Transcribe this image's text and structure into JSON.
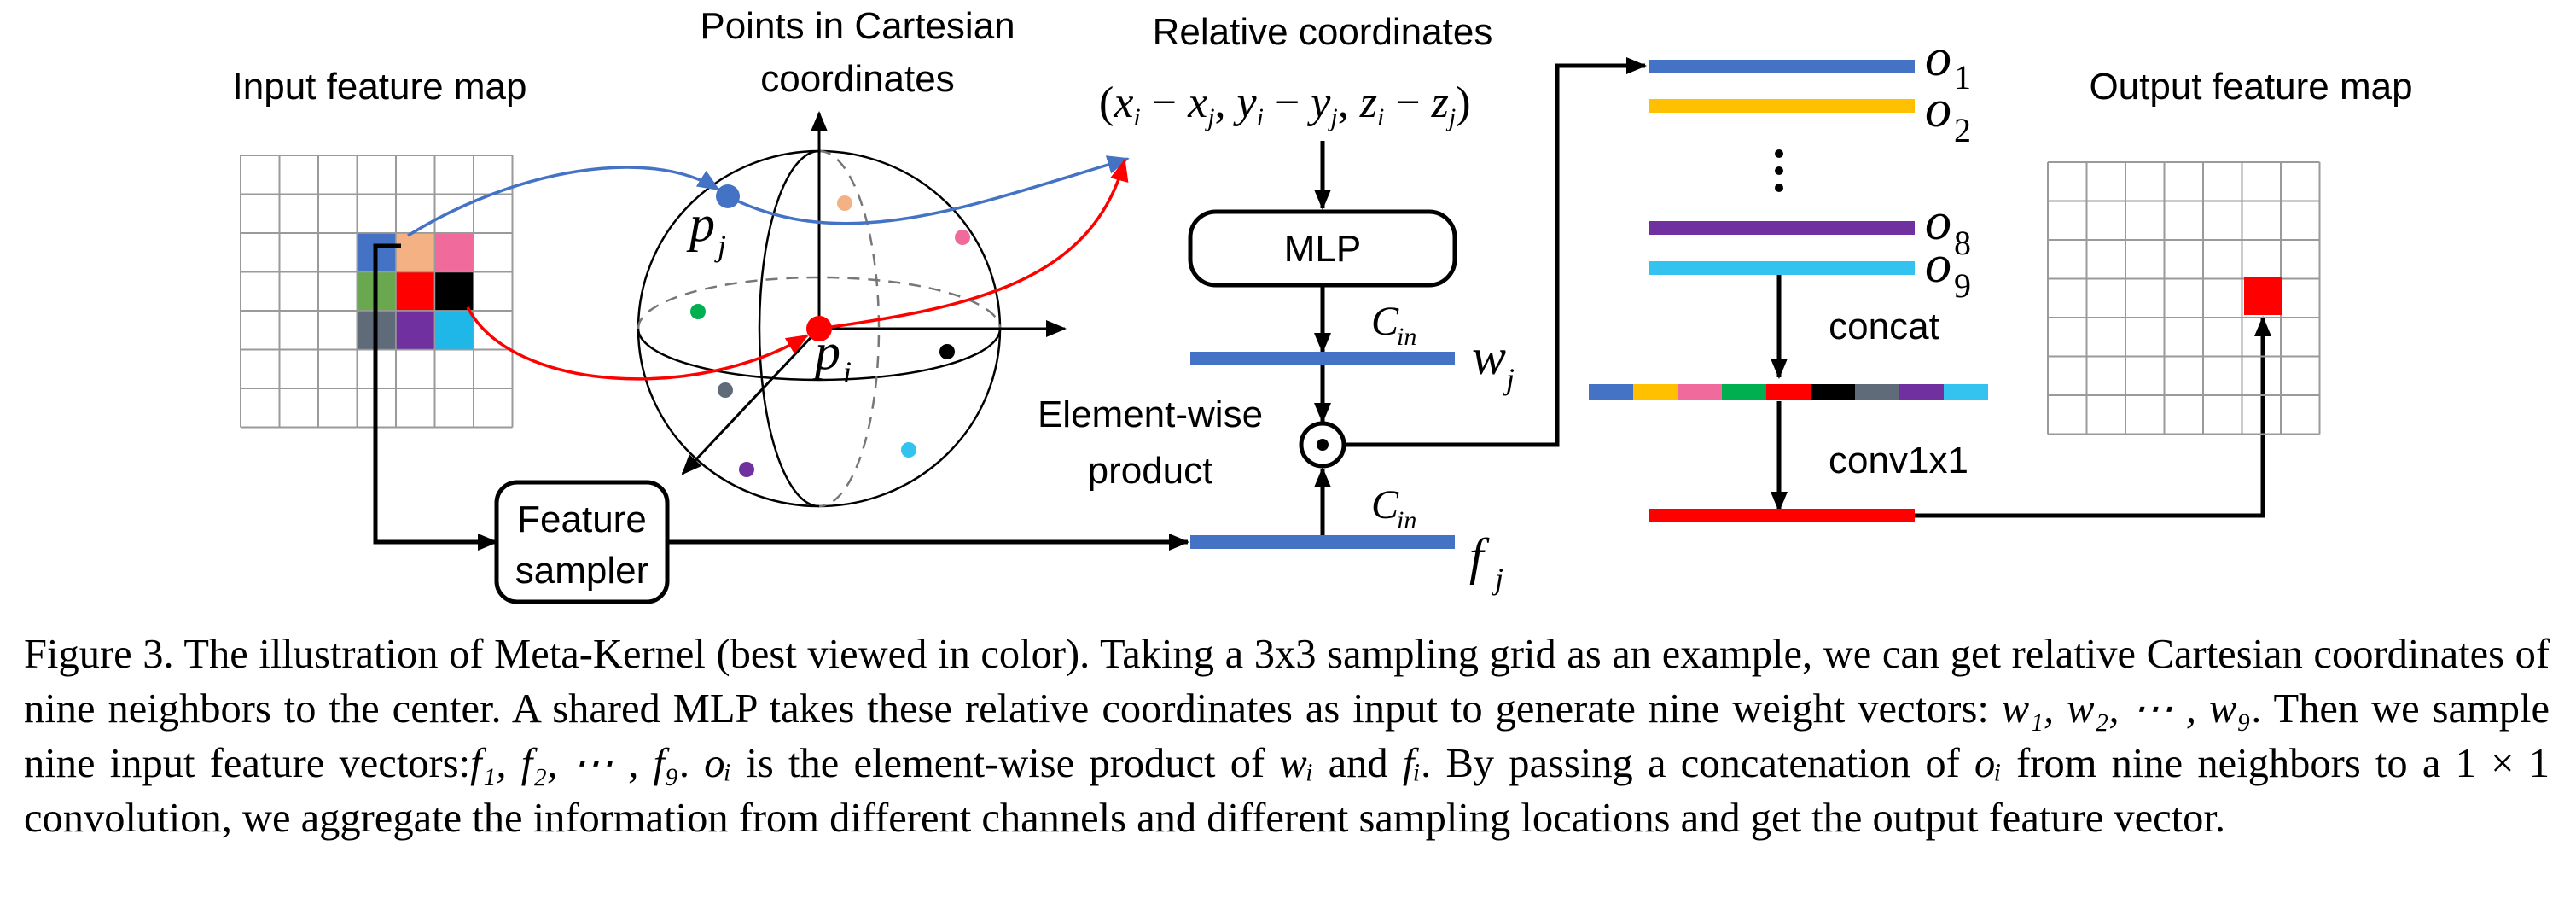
{
  "labels": {
    "input_feature_map": "Input feature map",
    "points_line1": "Points in Cartesian",
    "points_line2": "coordinates",
    "relative_coordinates": "Relative coordinates",
    "mlp": "MLP",
    "element_wise_line1": "Element-wise",
    "element_wise_line2": "product",
    "feature_sampler_line1": "Feature",
    "feature_sampler_line2": "sampler",
    "output_feature_map": "Output feature map",
    "concat": "concat",
    "conv1x1": "conv1x1",
    "odot": "⊙"
  },
  "math": {
    "formula": "(x",
    "p_letter": "p",
    "sub_i": "i",
    "sub_j": "j",
    "w_letter": "w",
    "f_letter": "f",
    "c_letter": "C",
    "c_sub": "in",
    "o_letter": "o",
    "o_sub_1": "1",
    "o_sub_2": "2",
    "o_sub_8": "8",
    "o_sub_9": "9",
    "vdots": "⋮"
  },
  "neighbor_colors": [
    "#4472c4",
    "#f4b184",
    "#f06a9b",
    "#6aa84f",
    "#ff0000",
    "#000000",
    "#5f6b79",
    "#7030a0",
    "#1fb6e8"
  ],
  "concat_colors": [
    "#4472c4",
    "#ffc000",
    "#f06a9b",
    "#00b050",
    "#ff0000",
    "#000000",
    "#5f6b79",
    "#7030a0",
    "#33c3ee"
  ],
  "output_bar_colors": {
    "o1": "#4472c4",
    "o2": "#ffc000",
    "o8": "#7030a0",
    "o9": "#33c3ee"
  },
  "caption": {
    "part1": "Figure 3. The illustration of Meta-Kernel (best viewed in color). Taking a 3x3 sampling grid as an example, we can get relative Cartesian coordinates of nine neighbors to the center. A shared MLP takes these relative coordinates as input to generate nine weight vectors: ",
    "w_list": "w₁, w₂, ⋯ , w₉",
    "part2": ". Then we sample nine input feature vectors:",
    "f_list": "f₁, f₂, ⋯ , f₉",
    "part3": ". ",
    "o_i": "oᵢ",
    "part4": " is the element-wise product of ",
    "w_i": "wᵢ",
    "part5": " and ",
    "f_i": "fᵢ",
    "part6": ". By passing a concatenation of ",
    "o_i2": "oᵢ",
    "part7": " from nine neighbors to a ",
    "one_by_one": "1 × 1",
    "part8": " convolution, we aggregate the information from different channels and different sampling locations and get the output feature vector."
  }
}
